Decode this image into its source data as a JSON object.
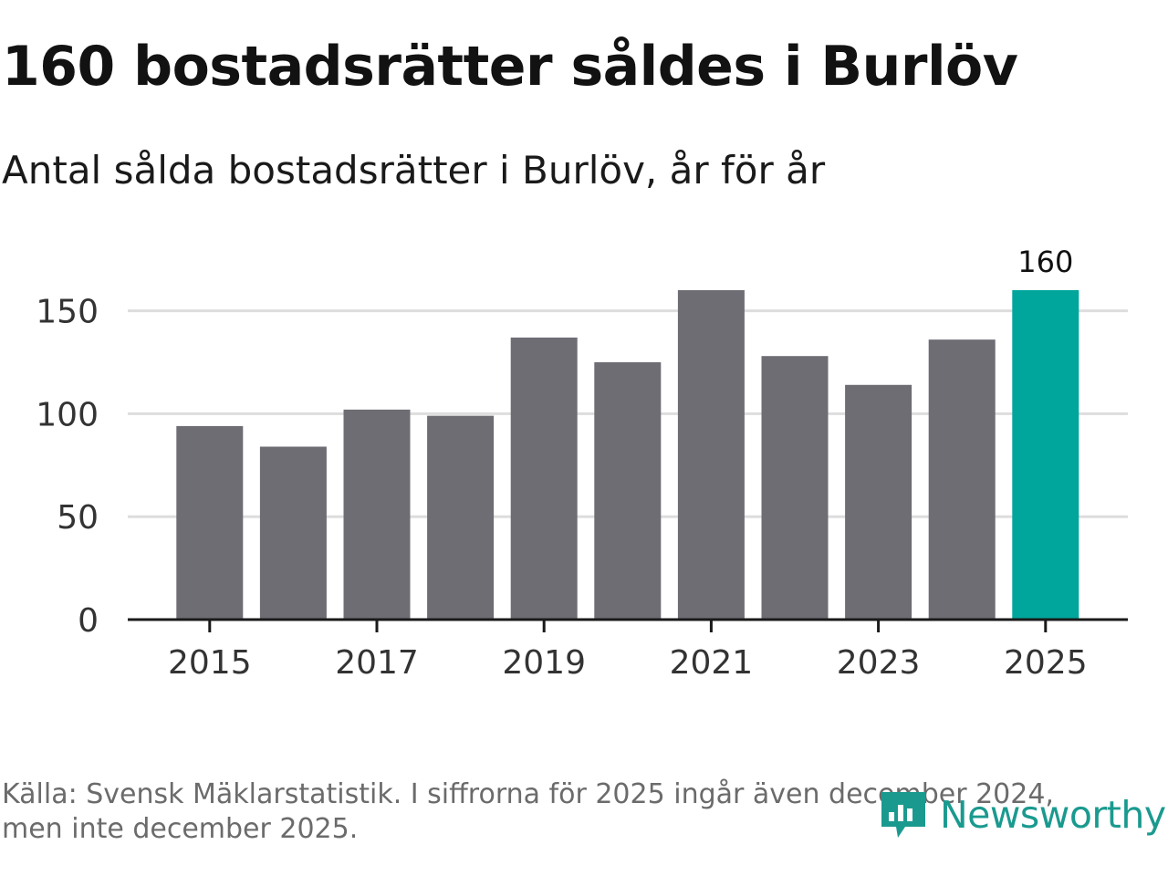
{
  "header": {
    "title": "160 bostadsrätter såldes i Burlöv",
    "subtitle": "Antal sålda bostadsrätter i Burlöv, år för år"
  },
  "footer": {
    "line1": "Källa: Svensk Mäklarstatistik. I siffrorna för 2025 ingår även december 2024,",
    "line2": "men inte december 2025."
  },
  "brand": {
    "name": "Newsworthy",
    "icon": "newsworthy-logo-icon",
    "color": "#1a9a8f"
  },
  "chart_data": {
    "type": "bar",
    "categories": [
      "2015",
      "2016",
      "2017",
      "2018",
      "2019",
      "2020",
      "2021",
      "2022",
      "2023",
      "2024",
      "2025"
    ],
    "values": [
      94,
      84,
      102,
      99,
      137,
      125,
      160,
      128,
      114,
      136,
      160
    ],
    "x_tick_labels": [
      "2015",
      "2017",
      "2019",
      "2021",
      "2023",
      "2025"
    ],
    "y_ticks": [
      0,
      50,
      100,
      150
    ],
    "ylim": [
      0,
      160
    ],
    "grid": true,
    "highlight_index": 10,
    "data_labels": [
      {
        "index": 10,
        "text": "160"
      }
    ],
    "colors": {
      "bar": "#6e6d74",
      "highlight": "#00a59b",
      "grid": "#dddddd",
      "axis": "#1a1a1a"
    }
  }
}
